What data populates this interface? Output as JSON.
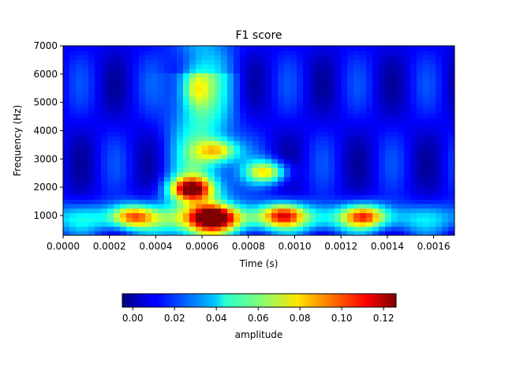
{
  "chart_data": {
    "type": "heatmap",
    "title": "F1 score",
    "xlabel": "Time (s)",
    "ylabel": "Frequency (Hz)",
    "xlim": [
      0,
      0.00169
    ],
    "ylim": [
      300,
      7000
    ],
    "xticks": [
      "0.0000",
      "0.0002",
      "0.0004",
      "0.0006",
      "0.0008",
      "0.0010",
      "0.0012",
      "0.0014",
      "0.0016"
    ],
    "xtick_values": [
      0,
      0.0002,
      0.0004,
      0.0006,
      0.0008,
      0.001,
      0.0012,
      0.0014,
      0.0016
    ],
    "yticks": [
      "1000",
      "2000",
      "3000",
      "4000",
      "5000",
      "6000",
      "7000"
    ],
    "ytick_values": [
      1000,
      2000,
      3000,
      4000,
      5000,
      6000,
      7000
    ],
    "colorbar": {
      "label": "amplitude",
      "colormap": "jet",
      "range": [
        -0.005,
        0.126
      ],
      "ticks": [
        "0.00",
        "0.02",
        "0.04",
        "0.06",
        "0.08",
        "0.10",
        "0.12"
      ],
      "tick_values": [
        0,
        0.02,
        0.04,
        0.06,
        0.08,
        0.1,
        0.12
      ]
    },
    "grid": false,
    "background_amplitude": 0.01,
    "features": [
      {
        "name": "peak-main",
        "time": 0.00055,
        "freq": 1950,
        "amplitude": 0.12
      },
      {
        "name": "low-band-left",
        "time": 0.0003,
        "freq": 1000,
        "amplitude": 0.085
      },
      {
        "name": "low-band-center",
        "time": 0.00065,
        "freq": 950,
        "amplitude": 0.1
      },
      {
        "name": "low-band-right",
        "time": 0.00095,
        "freq": 1050,
        "amplitude": 0.09
      },
      {
        "name": "late-burst",
        "time": 0.0013,
        "freq": 1000,
        "amplitude": 0.09
      },
      {
        "name": "mid-burst",
        "time": 0.00088,
        "freq": 2550,
        "amplitude": 0.095
      },
      {
        "name": "upper-burst",
        "time": 0.00067,
        "freq": 3300,
        "amplitude": 0.085
      },
      {
        "name": "vertical-streak",
        "time": 0.00057,
        "freq": 5500,
        "amplitude": 0.065
      }
    ]
  }
}
